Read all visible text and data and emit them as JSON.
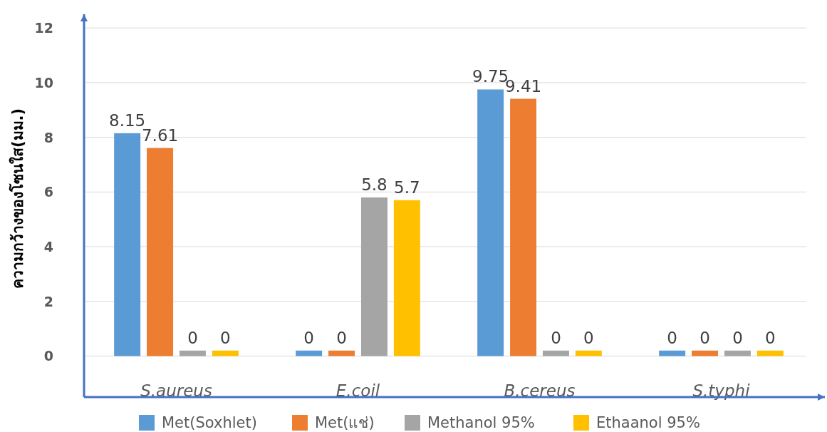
{
  "chart_data": {
    "type": "bar",
    "ylabel": "ความกว้างของโซนใส(มม.)",
    "categories": [
      "*S.aureus*",
      "*E.coil*",
      "*B.cereus*",
      "*S.typhi*"
    ],
    "series": [
      {
        "name": "Met(Soxhlet)",
        "color": "#5b9bd5",
        "values": [
          8.15,
          0.2,
          9.75,
          0.2
        ],
        "value_labels": [
          "8.15",
          "0",
          "9.75",
          "0"
        ]
      },
      {
        "name": "Met(แช่)",
        "color": "#ed7d31",
        "values": [
          7.61,
          0.2,
          9.41,
          0.2
        ],
        "value_labels": [
          "7.61",
          "0",
          "9.41",
          "0"
        ]
      },
      {
        "name": "Methanol 95%",
        "color": "#a5a5a5",
        "values": [
          0.2,
          5.8,
          0.2,
          0.2
        ],
        "value_labels": [
          "0",
          "5.8",
          "0",
          "0"
        ]
      },
      {
        "name": "Ethaanol 95%",
        "color": "#ffc000",
        "values": [
          0.2,
          5.7,
          0.2,
          0.2
        ],
        "value_labels": [
          "0",
          "5.7",
          "0",
          "0"
        ]
      }
    ],
    "ylim": [
      -1.5,
      12.5
    ],
    "yticks": [
      0,
      2,
      4,
      6,
      8,
      10,
      12
    ],
    "grid": "y",
    "legend": "bottom"
  }
}
